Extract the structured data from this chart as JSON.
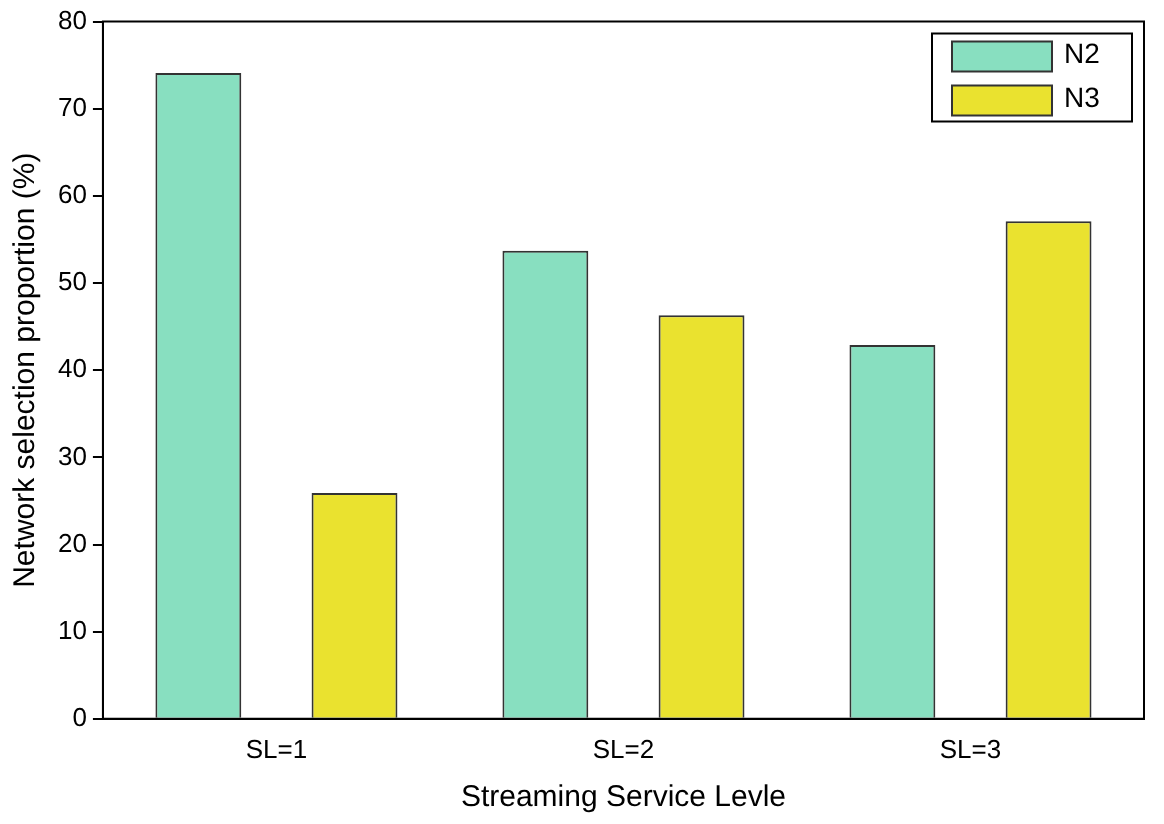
{
  "chart_data": {
    "type": "bar",
    "xlabel": "Streaming Service Levle",
    "ylabel": "Network selection proportion (%)",
    "categories": [
      "SL=1",
      "SL=2",
      "SL=3"
    ],
    "series": [
      {
        "name": "N2",
        "color": "#88dfc0",
        "values": [
          74.1,
          53.7,
          42.9
        ]
      },
      {
        "name": "N3",
        "color": "#eae22f",
        "values": [
          25.9,
          46.3,
          57.1
        ]
      }
    ],
    "ylim": [
      0,
      80
    ],
    "yticks": [
      0,
      10,
      20,
      30,
      40,
      50,
      60,
      70,
      80
    ],
    "grid": false,
    "legend": "top right"
  }
}
